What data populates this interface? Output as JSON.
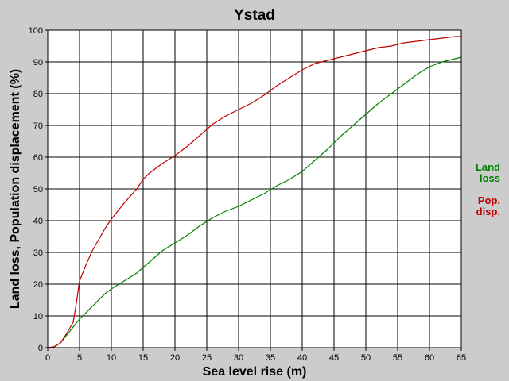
{
  "chart_data": {
    "type": "line",
    "title": "Ystad",
    "xlabel": "Sea level rise (m)",
    "ylabel": "Land loss, Population displacement (%)",
    "xlim": [
      0,
      65
    ],
    "ylim": [
      0,
      100
    ],
    "xticks": [
      0,
      5,
      10,
      15,
      20,
      25,
      30,
      35,
      40,
      45,
      50,
      55,
      60,
      65
    ],
    "yticks": [
      0,
      10,
      20,
      30,
      40,
      50,
      60,
      70,
      80,
      90,
      100
    ],
    "grid": true,
    "legend_position": "right",
    "series": [
      {
        "name": "Land loss",
        "legend_lines": [
          "Land",
          "loss"
        ],
        "color": "#008000",
        "x": [
          0,
          1,
          2,
          3,
          4,
          5,
          6,
          7,
          8,
          9,
          10,
          12,
          14,
          16,
          18,
          20,
          22,
          24,
          26,
          28,
          30,
          32,
          34,
          36,
          38,
          40,
          42,
          44,
          46,
          48,
          50,
          52,
          54,
          56,
          58,
          60,
          62,
          64,
          65
        ],
        "y": [
          0,
          0.2,
          1.5,
          4,
          6.5,
          9,
          11,
          13,
          15,
          17,
          18.5,
          21,
          23.5,
          27,
          30.5,
          33,
          35.5,
          38.5,
          41,
          43,
          44.5,
          46.5,
          48.5,
          51,
          53,
          55.5,
          59,
          62.5,
          66.5,
          70,
          73.5,
          77,
          80,
          83,
          86,
          88.5,
          90,
          91,
          91.5
        ]
      },
      {
        "name": "Pop. disp.",
        "legend_lines": [
          "Pop.",
          "disp."
        ],
        "color": "#c00000",
        "x": [
          0,
          1,
          2,
          3,
          4,
          4.5,
          5,
          6,
          7,
          8,
          9,
          10,
          12,
          14,
          15,
          16,
          18,
          20,
          22,
          24,
          26,
          28,
          30,
          32,
          34,
          36,
          38,
          40,
          42,
          44,
          46,
          48,
          50,
          52,
          54,
          56,
          58,
          60,
          62,
          64,
          65
        ],
        "y": [
          0,
          0.3,
          1.5,
          4.5,
          8,
          14,
          21,
          26,
          30.5,
          34,
          37.5,
          40.5,
          45.5,
          50,
          53,
          55,
          58,
          60.5,
          63.5,
          67,
          70.5,
          73,
          75,
          77,
          79.5,
          82.5,
          85,
          87.5,
          89.5,
          90.5,
          91.5,
          92.5,
          93.5,
          94.5,
          95,
          96,
          96.5,
          97,
          97.5,
          98,
          98
        ]
      }
    ]
  }
}
